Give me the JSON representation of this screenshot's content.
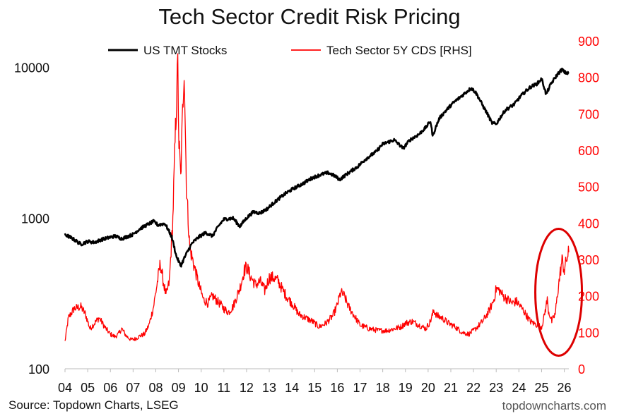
{
  "chart_data": {
    "type": "line",
    "title": "Tech Sector Credit Risk Pricing",
    "source": "Source: Topdown Charts, LSEG",
    "watermark": "topdowncharts.com",
    "x_tick_labels": [
      "04",
      "05",
      "06",
      "07",
      "08",
      "09",
      "10",
      "11",
      "12",
      "13",
      "14",
      "15",
      "16",
      "17",
      "18",
      "19",
      "20",
      "21",
      "22",
      "23",
      "24",
      "25",
      "26"
    ],
    "x_range": [
      2004.0,
      2026.2
    ],
    "left_axis": {
      "scale": "log",
      "range": [
        100,
        15000
      ],
      "tick_values": [
        100,
        1000,
        10000
      ],
      "tick_labels": [
        "100",
        "1000",
        "10000"
      ]
    },
    "right_axis": {
      "scale": "linear",
      "range": [
        0,
        900
      ],
      "tick_values": [
        0,
        100,
        200,
        300,
        400,
        500,
        600,
        700,
        800,
        900
      ],
      "tick_labels": [
        "0",
        "100",
        "200",
        "300",
        "400",
        "500",
        "600",
        "700",
        "800",
        "900"
      ],
      "color": "#ff0000"
    },
    "series": [
      {
        "name": "US TMT Stocks",
        "axis": "left",
        "color": "#000000",
        "points": [
          [
            2004.0,
            780
          ],
          [
            2004.4,
            720
          ],
          [
            2004.7,
            670
          ],
          [
            2005.0,
            700
          ],
          [
            2005.3,
            690
          ],
          [
            2005.6,
            720
          ],
          [
            2005.9,
            740
          ],
          [
            2006.2,
            760
          ],
          [
            2006.5,
            730
          ],
          [
            2006.8,
            760
          ],
          [
            2007.0,
            780
          ],
          [
            2007.3,
            850
          ],
          [
            2007.6,
            900
          ],
          [
            2007.9,
            950
          ],
          [
            2008.1,
            900
          ],
          [
            2008.4,
            920
          ],
          [
            2008.7,
            750
          ],
          [
            2008.9,
            560
          ],
          [
            2009.1,
            480
          ],
          [
            2009.3,
            560
          ],
          [
            2009.6,
            680
          ],
          [
            2009.9,
            750
          ],
          [
            2010.2,
            800
          ],
          [
            2010.5,
            760
          ],
          [
            2010.8,
            900
          ],
          [
            2011.0,
            980
          ],
          [
            2011.4,
            1000
          ],
          [
            2011.7,
            880
          ],
          [
            2012.0,
            1000
          ],
          [
            2012.3,
            1100
          ],
          [
            2012.6,
            1080
          ],
          [
            2012.9,
            1150
          ],
          [
            2013.3,
            1300
          ],
          [
            2013.7,
            1450
          ],
          [
            2014.0,
            1550
          ],
          [
            2014.5,
            1700
          ],
          [
            2014.9,
            1850
          ],
          [
            2015.3,
            1950
          ],
          [
            2015.6,
            2000
          ],
          [
            2015.9,
            1900
          ],
          [
            2016.1,
            1800
          ],
          [
            2016.5,
            2000
          ],
          [
            2016.9,
            2200
          ],
          [
            2017.3,
            2500
          ],
          [
            2017.7,
            2750
          ],
          [
            2018.0,
            3100
          ],
          [
            2018.5,
            3300
          ],
          [
            2018.9,
            2900
          ],
          [
            2019.2,
            3300
          ],
          [
            2019.6,
            3600
          ],
          [
            2019.9,
            4000
          ],
          [
            2020.1,
            4400
          ],
          [
            2020.2,
            3500
          ],
          [
            2020.5,
            4600
          ],
          [
            2020.8,
            5200
          ],
          [
            2021.1,
            5800
          ],
          [
            2021.5,
            6500
          ],
          [
            2021.9,
            7300
          ],
          [
            2022.1,
            6800
          ],
          [
            2022.4,
            5600
          ],
          [
            2022.8,
            4300
          ],
          [
            2023.0,
            4200
          ],
          [
            2023.4,
            5200
          ],
          [
            2023.8,
            5700
          ],
          [
            2024.1,
            6500
          ],
          [
            2024.5,
            7400
          ],
          [
            2024.8,
            7800
          ],
          [
            2025.0,
            8400
          ],
          [
            2025.2,
            6600
          ],
          [
            2025.4,
            7700
          ],
          [
            2025.7,
            9000
          ],
          [
            2025.9,
            9700
          ],
          [
            2026.0,
            9300
          ],
          [
            2026.2,
            9100
          ]
        ]
      },
      {
        "name": "Tech Sector 5Y CDS [RHS]",
        "axis": "right",
        "color": "#ff0000",
        "points": [
          [
            2004.0,
            75
          ],
          [
            2004.15,
            140
          ],
          [
            2004.4,
            165
          ],
          [
            2004.7,
            170
          ],
          [
            2004.9,
            150
          ],
          [
            2005.1,
            110
          ],
          [
            2005.3,
            125
          ],
          [
            2005.5,
            140
          ],
          [
            2005.8,
            110
          ],
          [
            2006.0,
            95
          ],
          [
            2006.2,
            88
          ],
          [
            2006.35,
            95
          ],
          [
            2006.5,
            110
          ],
          [
            2006.7,
            90
          ],
          [
            2006.9,
            80
          ],
          [
            2007.1,
            82
          ],
          [
            2007.3,
            90
          ],
          [
            2007.5,
            95
          ],
          [
            2007.7,
            120
          ],
          [
            2007.9,
            170
          ],
          [
            2008.05,
            230
          ],
          [
            2008.2,
            290
          ],
          [
            2008.3,
            250
          ],
          [
            2008.45,
            200
          ],
          [
            2008.6,
            240
          ],
          [
            2008.75,
            410
          ],
          [
            2008.85,
            620
          ],
          [
            2008.92,
            750
          ],
          [
            2008.97,
            830
          ],
          [
            2009.02,
            620
          ],
          [
            2009.1,
            520
          ],
          [
            2009.18,
            700
          ],
          [
            2009.25,
            840
          ],
          [
            2009.35,
            500
          ],
          [
            2009.5,
            330
          ],
          [
            2009.7,
            280
          ],
          [
            2009.9,
            230
          ],
          [
            2010.1,
            190
          ],
          [
            2010.3,
            180
          ],
          [
            2010.5,
            200
          ],
          [
            2010.8,
            180
          ],
          [
            2011.0,
            165
          ],
          [
            2011.2,
            155
          ],
          [
            2011.4,
            170
          ],
          [
            2011.7,
            220
          ],
          [
            2011.9,
            270
          ],
          [
            2012.0,
            280
          ],
          [
            2012.2,
            250
          ],
          [
            2012.4,
            230
          ],
          [
            2012.6,
            240
          ],
          [
            2012.8,
            215
          ],
          [
            2013.0,
            250
          ],
          [
            2013.2,
            250
          ],
          [
            2013.4,
            240
          ],
          [
            2013.6,
            215
          ],
          [
            2013.8,
            195
          ],
          [
            2014.0,
            180
          ],
          [
            2014.3,
            150
          ],
          [
            2014.6,
            140
          ],
          [
            2014.9,
            130
          ],
          [
            2015.2,
            115
          ],
          [
            2015.5,
            125
          ],
          [
            2015.8,
            145
          ],
          [
            2016.0,
            175
          ],
          [
            2016.15,
            210
          ],
          [
            2016.3,
            200
          ],
          [
            2016.5,
            170
          ],
          [
            2016.8,
            140
          ],
          [
            2017.0,
            120
          ],
          [
            2017.4,
            110
          ],
          [
            2017.8,
            105
          ],
          [
            2018.2,
            105
          ],
          [
            2018.5,
            110
          ],
          [
            2018.8,
            115
          ],
          [
            2019.0,
            125
          ],
          [
            2019.3,
            130
          ],
          [
            2019.6,
            120
          ],
          [
            2019.9,
            110
          ],
          [
            2020.1,
            130
          ],
          [
            2020.25,
            160
          ],
          [
            2020.4,
            145
          ],
          [
            2020.6,
            140
          ],
          [
            2020.9,
            125
          ],
          [
            2021.2,
            115
          ],
          [
            2021.5,
            100
          ],
          [
            2021.8,
            95
          ],
          [
            2022.1,
            110
          ],
          [
            2022.4,
            130
          ],
          [
            2022.7,
            160
          ],
          [
            2022.9,
            190
          ],
          [
            2023.0,
            220
          ],
          [
            2023.15,
            215
          ],
          [
            2023.3,
            200
          ],
          [
            2023.5,
            190
          ],
          [
            2023.7,
            180
          ],
          [
            2023.9,
            185
          ],
          [
            2024.2,
            160
          ],
          [
            2024.5,
            130
          ],
          [
            2024.8,
            120
          ],
          [
            2025.0,
            115
          ],
          [
            2025.1,
            140
          ],
          [
            2025.25,
            190
          ],
          [
            2025.3,
            160
          ],
          [
            2025.45,
            130
          ],
          [
            2025.6,
            150
          ],
          [
            2025.75,
            230
          ],
          [
            2025.9,
            300
          ],
          [
            2026.0,
            270
          ],
          [
            2026.1,
            300
          ],
          [
            2026.2,
            320
          ]
        ]
      }
    ],
    "annotations": [
      {
        "type": "ellipse",
        "color": "#dd0000",
        "note": "highlights recent surge in CDS spreads (2025-26)"
      }
    ]
  }
}
